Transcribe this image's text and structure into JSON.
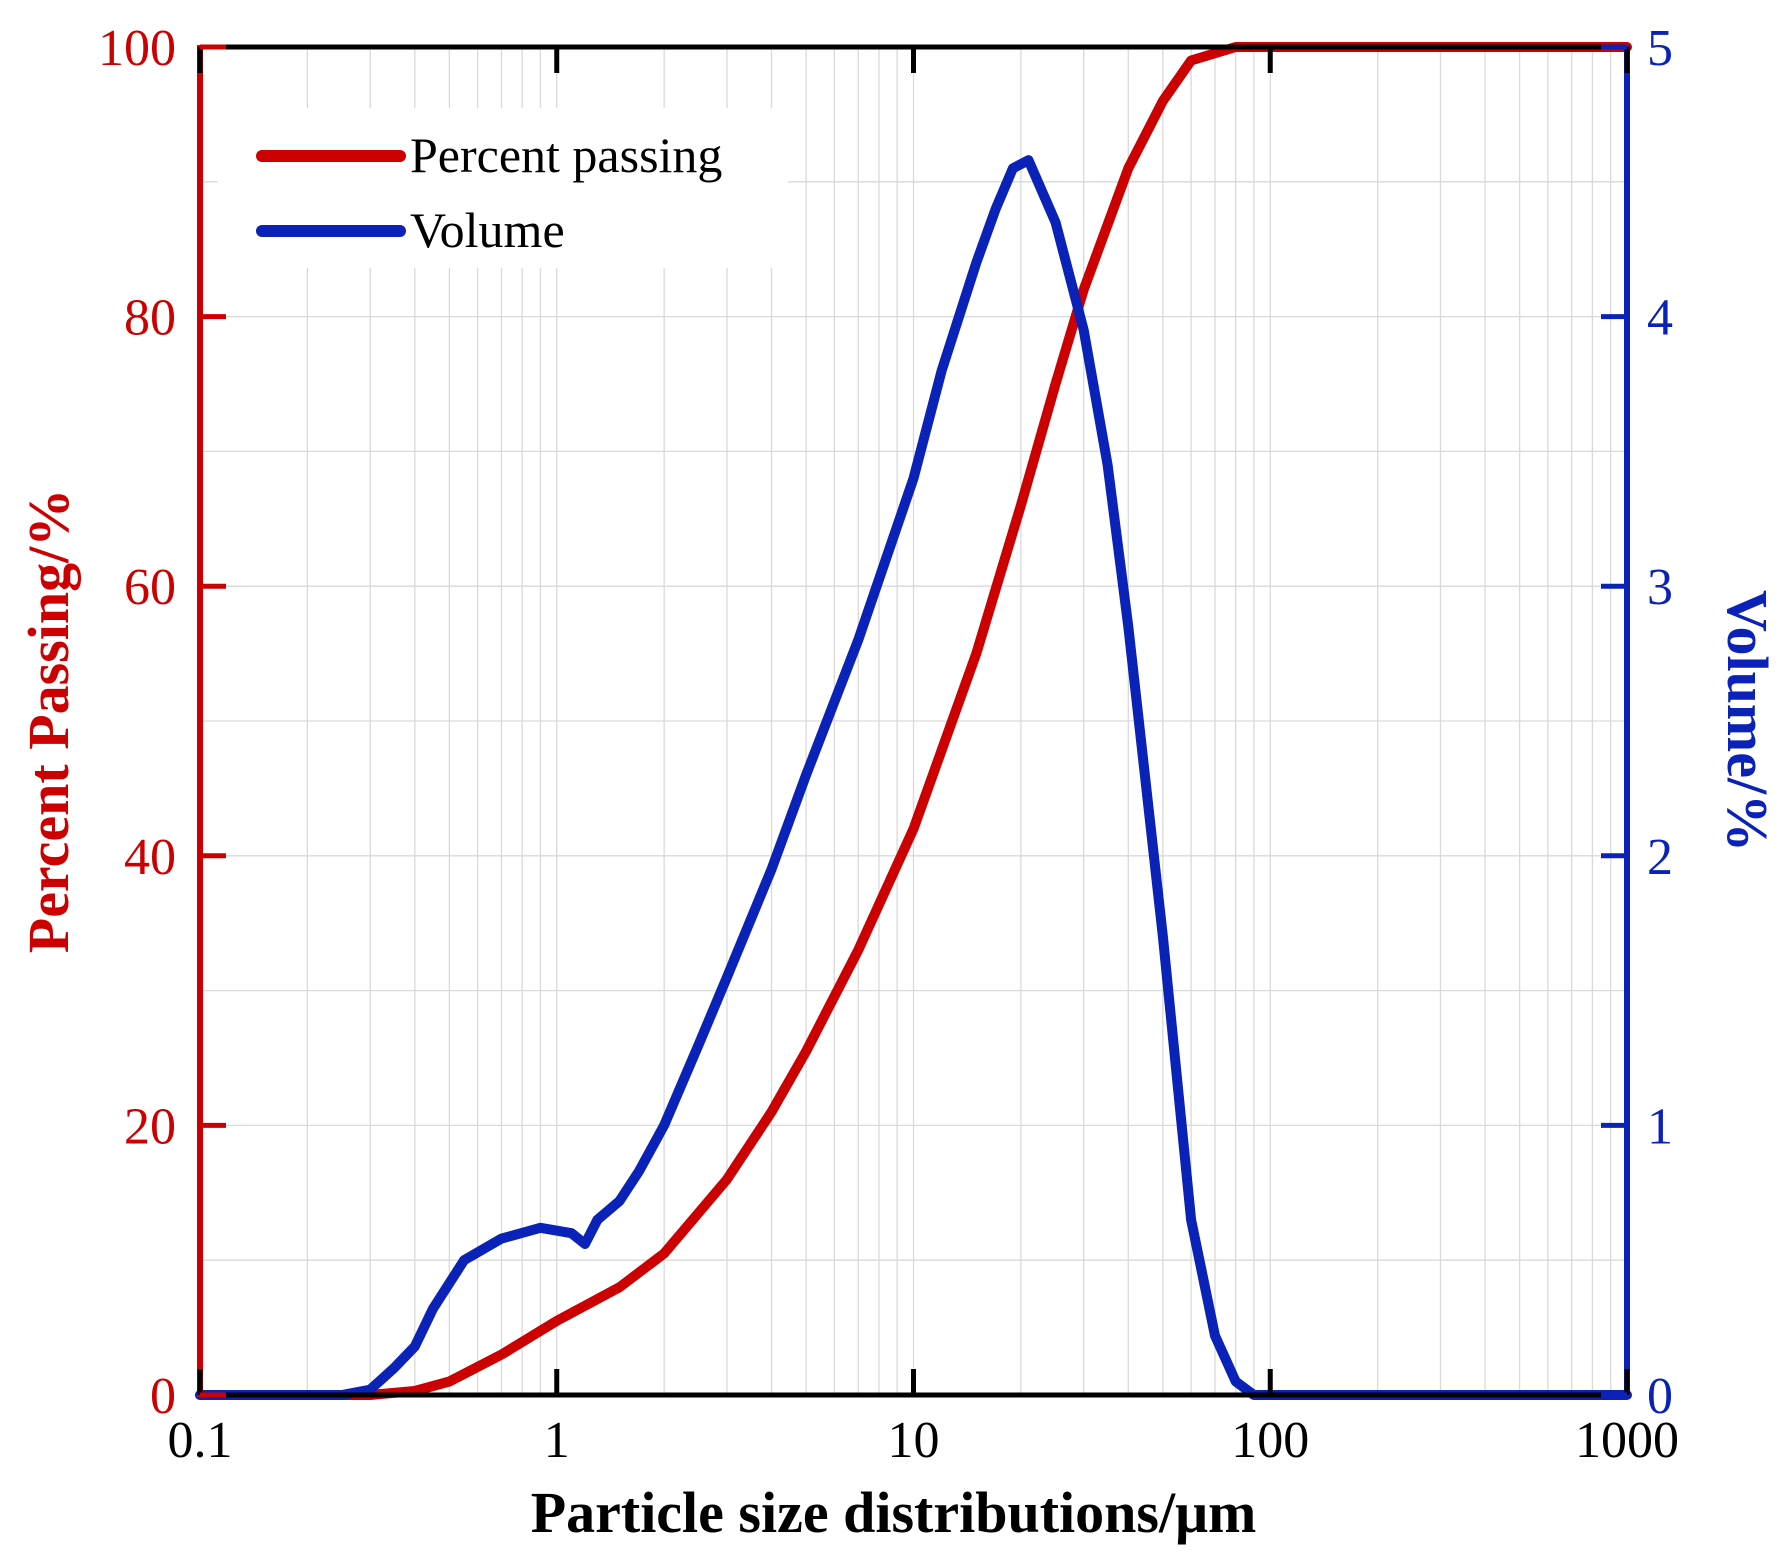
{
  "chart_data": {
    "type": "line",
    "xscale": "log",
    "xlim": [
      0.1,
      1000
    ],
    "xlabel": "Particle size distributions/μm",
    "x_ticks": [
      0.1,
      1,
      10,
      100,
      1000
    ],
    "x_tick_labels": [
      "0.1",
      "1",
      "10",
      "100",
      "1000"
    ],
    "left_axis": {
      "label": "Percent Passing/%",
      "ylim": [
        0,
        100
      ],
      "ticks": [
        0,
        20,
        40,
        60,
        80,
        100
      ],
      "tick_labels": [
        "0",
        "20",
        "40",
        "60",
        "80",
        "100"
      ],
      "color": "#cc0000"
    },
    "right_axis": {
      "label": "Volume/%",
      "ylim": [
        0,
        5
      ],
      "ticks": [
        0,
        1,
        2,
        3,
        4,
        5
      ],
      "tick_labels": [
        "0",
        "1",
        "2",
        "3",
        "4",
        "5"
      ],
      "color": "#0a22b8"
    },
    "grid": true,
    "legend": {
      "placement": "top-left",
      "entries": [
        "Percent passing",
        "Volume"
      ]
    },
    "series": [
      {
        "name": "Percent passing",
        "axis": "left",
        "color": "#cc0000",
        "x": [
          0.1,
          0.3,
          0.4,
          0.5,
          0.7,
          1.0,
          1.5,
          2.0,
          3.0,
          4.0,
          5.0,
          7.0,
          10.0,
          15.0,
          20.0,
          25.0,
          30.0,
          40.0,
          50.0,
          60.0,
          80.0,
          100.0,
          1000.0
        ],
        "values": [
          0,
          0,
          0.3,
          1,
          3,
          5.5,
          8,
          10.5,
          16,
          21,
          25.5,
          33,
          42,
          55,
          66,
          75,
          82,
          91,
          96,
          99,
          100,
          100,
          100
        ]
      },
      {
        "name": "Volume",
        "axis": "right",
        "color": "#0a22b8",
        "x": [
          0.1,
          0.25,
          0.3,
          0.35,
          0.4,
          0.45,
          0.55,
          0.7,
          0.9,
          1.1,
          1.2,
          1.3,
          1.5,
          1.7,
          2.0,
          2.5,
          3.0,
          4.0,
          5.0,
          7.0,
          10.0,
          12.0,
          15.0,
          17.0,
          19.0,
          21.0,
          25.0,
          30.0,
          35.0,
          40.0,
          50.0,
          60.0,
          70.0,
          80.0,
          90.0,
          100.0,
          1000.0
        ],
        "values": [
          0,
          0,
          0.02,
          0.1,
          0.18,
          0.32,
          0.5,
          0.58,
          0.62,
          0.6,
          0.56,
          0.65,
          0.72,
          0.83,
          1.0,
          1.3,
          1.55,
          1.95,
          2.3,
          2.8,
          3.4,
          3.8,
          4.2,
          4.4,
          4.55,
          4.58,
          4.35,
          3.95,
          3.45,
          2.85,
          1.7,
          0.65,
          0.22,
          0.05,
          0,
          0,
          0
        ]
      }
    ]
  }
}
